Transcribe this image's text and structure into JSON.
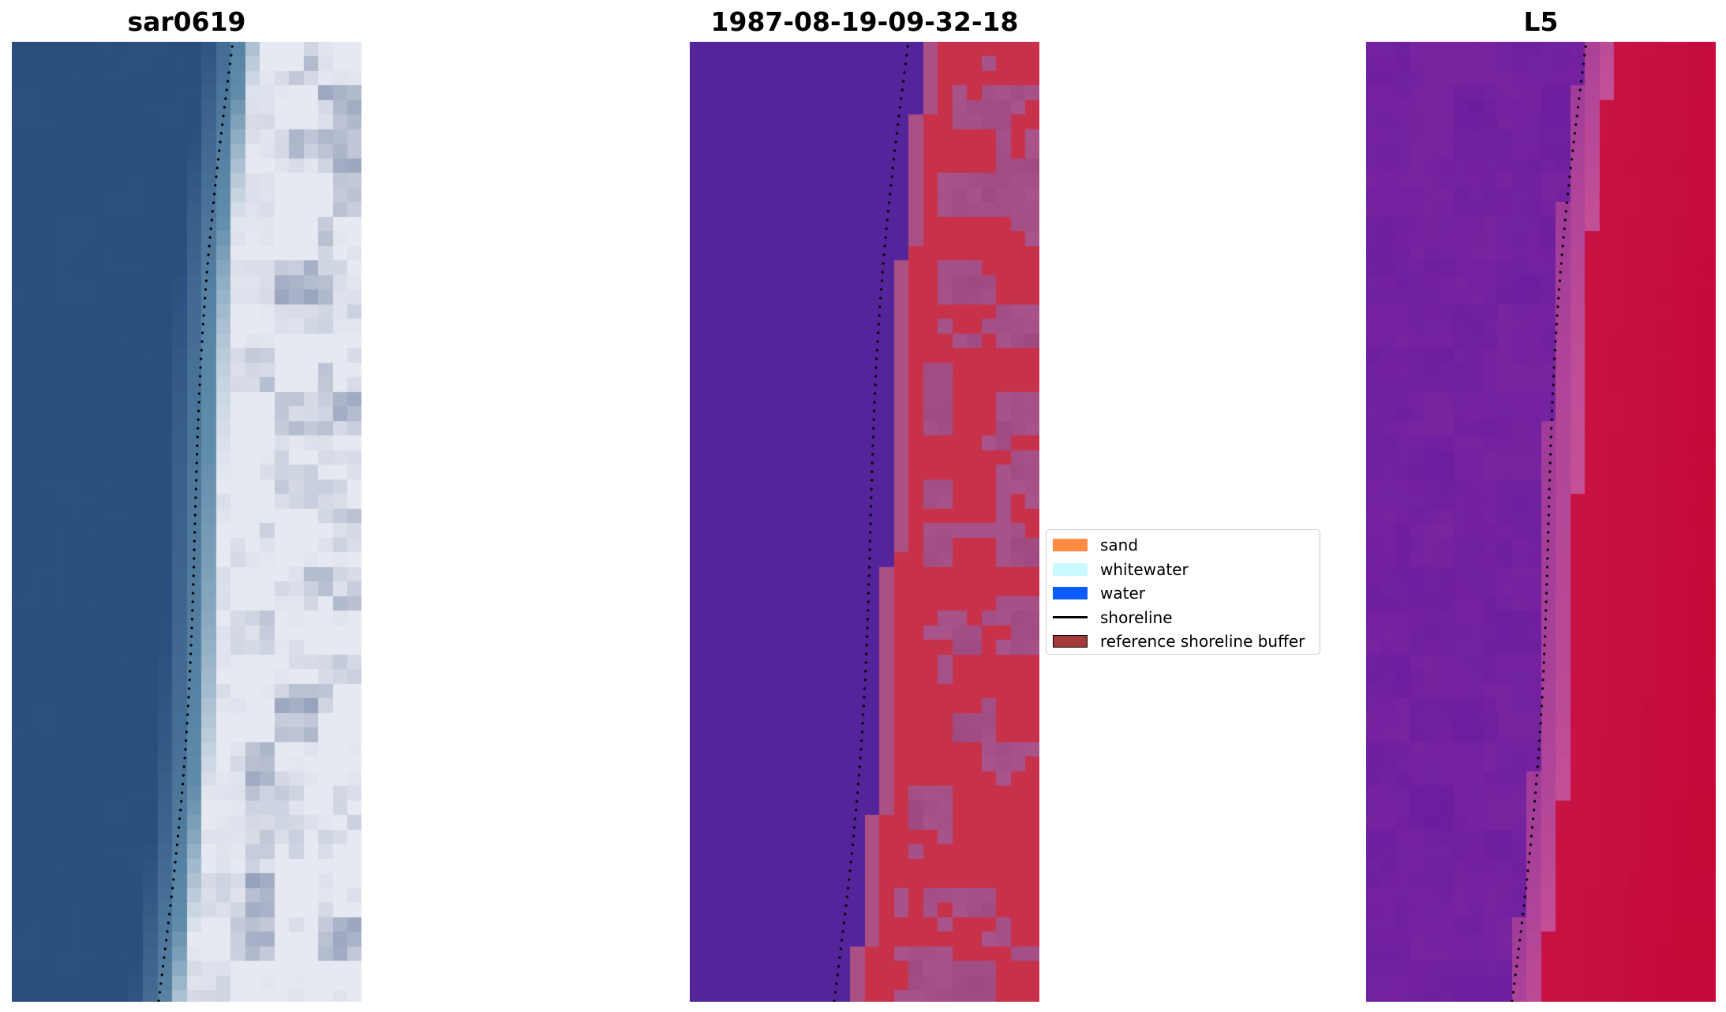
{
  "panels": [
    {
      "title": "sar0619",
      "style": "rgb"
    },
    {
      "title": "1987-08-19-09-32-18",
      "style": "classified"
    },
    {
      "title": "L5",
      "style": "index"
    }
  ],
  "legend": {
    "items": [
      {
        "label": "sand",
        "kind": "patch",
        "color": "#ff8c42"
      },
      {
        "label": "whitewater",
        "kind": "patch",
        "color": "#c8faff"
      },
      {
        "label": "water",
        "kind": "patch",
        "color": "#0a5cff"
      },
      {
        "label": "shoreline",
        "kind": "line",
        "color": "#000000"
      },
      {
        "label": "reference shoreline buffer",
        "kind": "patch",
        "color": "#a33a3a",
        "edge": "#000000"
      }
    ]
  },
  "colors": {
    "rgb_water": "#2a4e7e",
    "rgb_surf": "#e6e9f1",
    "rgb_shadow": "#6b7a9e",
    "class_water": "#53249a",
    "class_land": "#c7324a",
    "class_buffer": "#a8538a",
    "index_low": "#6b1c9e",
    "index_high": "#c40a3a",
    "shoreline": "#000000"
  }
}
